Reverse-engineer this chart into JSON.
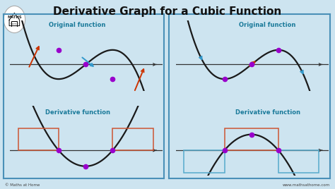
{
  "title": "Derivative Graph for a Cubic Function",
  "title_fontsize": 11,
  "label_orig": "Original function",
  "label_deriv": "Derivative function",
  "label_color": "#1a7a9a",
  "bg_color": "#cde4f0",
  "border_color": "#4a90b8",
  "curve_color": "#1a1a1a",
  "axis_color": "#333333",
  "dot_color": "#9900cc",
  "arrow_red": "#cc3300",
  "arrow_blue": "#3399cc",
  "box_red": "#cc5533",
  "box_blue": "#55aacc",
  "footer_left": "© Maths at Home",
  "footer_right": "www.mathsathome.com"
}
